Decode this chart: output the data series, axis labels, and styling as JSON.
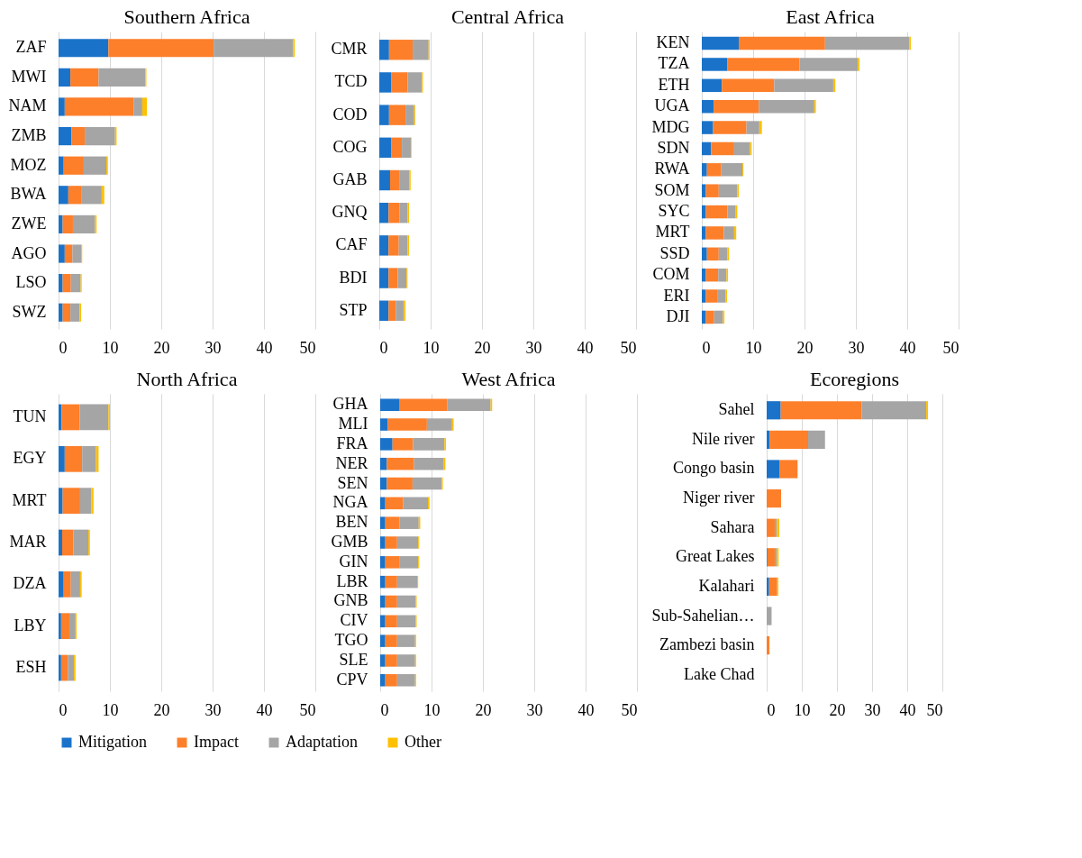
{
  "chart_data": [
    {
      "type": "bar",
      "orientation": "horizontal",
      "stacked": true,
      "title": "Southern Africa",
      "categories": [
        "ZAF",
        "MWI",
        "NAM",
        "ZMB",
        "MOZ",
        "BWA",
        "ZWE",
        "AGO",
        "LSO",
        "SWZ"
      ],
      "xlim": [
        0,
        50
      ],
      "xticks": [
        0,
        10,
        20,
        30,
        40,
        50
      ],
      "grid": "x",
      "legend": "bottom",
      "series": [
        {
          "name": "Mitigation",
          "color": "#1a73c9",
          "values": [
            9.7,
            2.3,
            1.2,
            2.5,
            1.0,
            1.9,
            0.8,
            1.2,
            0.8,
            0.8
          ]
        },
        {
          "name": "Impact",
          "color": "#fd7f2a",
          "values": [
            20.5,
            5.5,
            13.4,
            2.6,
            3.9,
            2.5,
            2.0,
            1.5,
            1.6,
            1.5
          ]
        },
        {
          "name": "Adaptation",
          "color": "#a5a5a5",
          "values": [
            15.5,
            9.1,
            1.7,
            5.9,
            4.4,
            4.0,
            4.3,
            1.7,
            1.9,
            1.8
          ]
        },
        {
          "name": "Other",
          "color": "#ffc000",
          "values": [
            0.3,
            0.2,
            0.9,
            0.3,
            0.3,
            0.5,
            0.3,
            0.2,
            0.2,
            0.3
          ]
        }
      ]
    },
    {
      "type": "bar",
      "orientation": "horizontal",
      "stacked": true,
      "title": "Central Africa",
      "categories": [
        "CMR",
        "TCD",
        "COD",
        "COG",
        "GAB",
        "GNQ",
        "CAF",
        "BDI",
        "STP"
      ],
      "xlim": [
        0,
        50
      ],
      "xticks": [
        0,
        10,
        20,
        30,
        40,
        50
      ],
      "grid": "x",
      "legend": "bottom",
      "series": [
        {
          "name": "Mitigation",
          "color": "#1a73c9",
          "values": [
            1.9,
            2.3,
            1.9,
            2.3,
            2.1,
            1.8,
            1.8,
            1.8,
            1.8
          ]
        },
        {
          "name": "Impact",
          "color": "#fd7f2a",
          "values": [
            4.6,
            3.2,
            3.2,
            2.1,
            1.9,
            2.1,
            2.0,
            1.8,
            1.4
          ]
        },
        {
          "name": "Adaptation",
          "color": "#a5a5a5",
          "values": [
            3.1,
            2.8,
            1.7,
            1.8,
            1.9,
            1.6,
            1.7,
            1.7,
            1.6
          ]
        },
        {
          "name": "Other",
          "color": "#ffc000",
          "values": [
            0.2,
            0.2,
            0.2,
            0.1,
            0.2,
            0.3,
            0.3,
            0.2,
            0.3
          ]
        }
      ]
    },
    {
      "type": "bar",
      "orientation": "horizontal",
      "stacked": true,
      "title": "East Africa",
      "categories": [
        "KEN",
        "TZA",
        "ETH",
        "UGA",
        "MDG",
        "SDN",
        "RWA",
        "SOM",
        "SYC",
        "MRT",
        "SSD",
        "COM",
        "ERI",
        "DJI"
      ],
      "xlim": [
        0,
        50
      ],
      "xticks": [
        0,
        10,
        20,
        30,
        40,
        50
      ],
      "grid": "x",
      "legend": "bottom",
      "series": [
        {
          "name": "Mitigation",
          "color": "#1a73c9",
          "values": [
            7.2,
            5.0,
            3.9,
            2.3,
            2.2,
            1.8,
            1.0,
            0.8,
            0.8,
            0.8,
            1.0,
            0.8,
            0.8,
            0.8
          ]
        },
        {
          "name": "Impact",
          "color": "#fd7f2a",
          "values": [
            16.8,
            14.0,
            10.2,
            8.8,
            6.5,
            4.5,
            2.8,
            2.5,
            4.2,
            3.5,
            2.3,
            2.4,
            2.2,
            1.6
          ]
        },
        {
          "name": "Adaptation",
          "color": "#a5a5a5",
          "values": [
            16.4,
            11.4,
            11.5,
            10.8,
            2.5,
            3.1,
            4.1,
            3.6,
            1.6,
            2.0,
            1.7,
            1.6,
            1.6,
            1.7
          ]
        },
        {
          "name": "Other",
          "color": "#ffc000",
          "values": [
            0.3,
            0.3,
            0.4,
            0.3,
            0.5,
            0.3,
            0.2,
            0.3,
            0.3,
            0.4,
            0.3,
            0.3,
            0.3,
            0.3
          ]
        }
      ]
    },
    {
      "type": "bar",
      "orientation": "horizontal",
      "stacked": true,
      "title": "North Africa",
      "categories": [
        "TUN",
        "EGY",
        "MRT",
        "MAR",
        "DZA",
        "LBY",
        "ESH"
      ],
      "xlim": [
        0,
        50
      ],
      "xticks": [
        0,
        10,
        20,
        30,
        40,
        50
      ],
      "grid": "x",
      "legend": "bottom",
      "series": [
        {
          "name": "Mitigation",
          "color": "#1a73c9",
          "values": [
            0.6,
            1.2,
            0.8,
            0.7,
            1.0,
            0.5,
            0.5
          ]
        },
        {
          "name": "Impact",
          "color": "#fd7f2a",
          "values": [
            3.5,
            3.4,
            3.4,
            2.2,
            1.4,
            1.6,
            1.3
          ]
        },
        {
          "name": "Adaptation",
          "color": "#a5a5a5",
          "values": [
            5.6,
            2.7,
            2.2,
            2.9,
            1.8,
            1.2,
            1.2
          ]
        },
        {
          "name": "Other",
          "color": "#ffc000",
          "values": [
            0.3,
            0.5,
            0.4,
            0.3,
            0.3,
            0.2,
            0.3
          ]
        }
      ]
    },
    {
      "type": "bar",
      "orientation": "horizontal",
      "stacked": true,
      "title": "West Africa",
      "categories": [
        "GHA",
        "MLI",
        "FRA",
        "NER",
        "SEN",
        "NGA",
        "BEN",
        "GMB",
        "GIN",
        "LBR",
        "GNB",
        "CIV",
        "TGO",
        "SLE",
        "CPV"
      ],
      "xlim": [
        0,
        50
      ],
      "xticks": [
        0,
        10,
        20,
        30,
        40,
        50
      ],
      "grid": "x",
      "legend": "bottom",
      "series": [
        {
          "name": "Mitigation",
          "color": "#1a73c9",
          "values": [
            3.8,
            1.5,
            2.4,
            1.3,
            1.3,
            1.0,
            1.0,
            1.0,
            1.0,
            1.0,
            1.0,
            1.0,
            1.0,
            1.0,
            1.0
          ]
        },
        {
          "name": "Impact",
          "color": "#fd7f2a",
          "values": [
            9.3,
            7.6,
            4.0,
            5.3,
            5.0,
            3.5,
            2.8,
            2.3,
            2.7,
            2.3,
            2.3,
            2.3,
            2.3,
            2.3,
            2.3
          ]
        },
        {
          "name": "Adaptation",
          "color": "#a5a5a5",
          "values": [
            8.4,
            4.9,
            6.1,
            5.8,
            5.7,
            4.8,
            3.7,
            4.1,
            3.7,
            3.9,
            3.6,
            3.6,
            3.5,
            3.5,
            3.5
          ]
        },
        {
          "name": "Other",
          "color": "#ffc000",
          "values": [
            0.3,
            0.3,
            0.3,
            0.3,
            0.2,
            0.3,
            0.3,
            0.2,
            0.2,
            0.2,
            0.2,
            0.2,
            0.2,
            0.2,
            0.2
          ]
        }
      ]
    },
    {
      "type": "bar",
      "orientation": "horizontal",
      "stacked": true,
      "title": "Ecoregions",
      "categories": [
        "Sahel",
        "Nile river",
        "Congo basin",
        "Niger river",
        "Sahara",
        "Great Lakes",
        "Kalahari",
        "Sub-Sahelian…",
        "Zambezi basin",
        "Lake Chad"
      ],
      "xlim": [
        0,
        50
      ],
      "xticks": [
        0,
        10,
        20,
        30,
        40,
        50
      ],
      "grid": "x",
      "legend": "bottom",
      "series": [
        {
          "name": "Mitigation",
          "color": "#1a73c9",
          "values": [
            4.0,
            0.8,
            3.6,
            0,
            0,
            0.2,
            0.7,
            0,
            0,
            0
          ]
        },
        {
          "name": "Impact",
          "color": "#fd7f2a",
          "values": [
            23.0,
            11.0,
            5.2,
            4.1,
            2.3,
            2.1,
            2.3,
            0,
            0.8,
            0
          ]
        },
        {
          "name": "Adaptation",
          "color": "#a5a5a5",
          "values": [
            18.4,
            4.8,
            null,
            null,
            0.6,
            0.6,
            0,
            1.4,
            0,
            0
          ]
        },
        {
          "name": "Other",
          "color": "#ffc000",
          "values": [
            0.5,
            0,
            0,
            0,
            0.7,
            0.5,
            0.3,
            0,
            0,
            0
          ]
        }
      ]
    }
  ]
}
